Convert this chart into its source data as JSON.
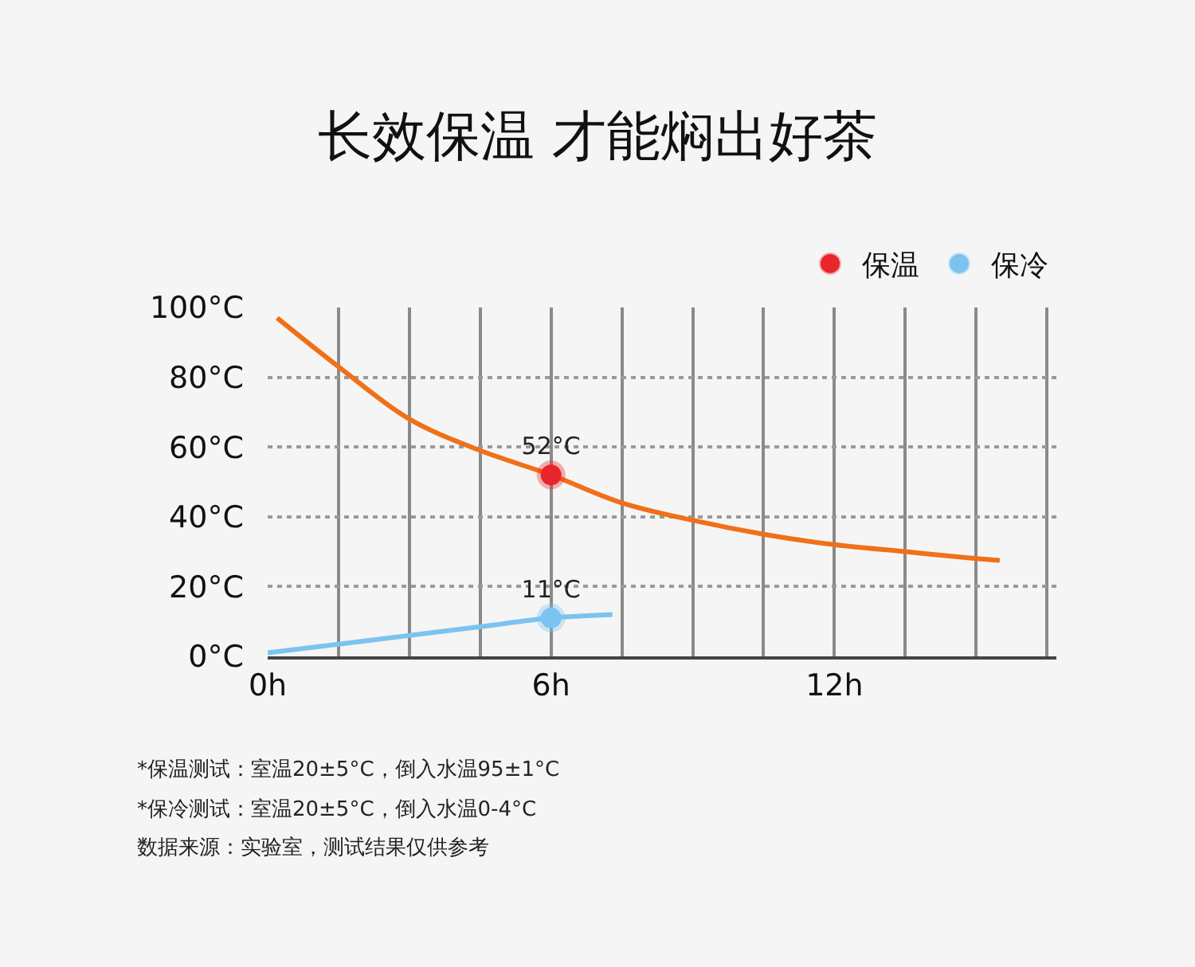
{
  "chart_data": {
    "type": "line",
    "title": "长效保温 才能焖出好茶",
    "xlim": [
      0,
      16.7
    ],
    "xticks": [
      {
        "value": 0,
        "label": "0h"
      },
      {
        "value": 1.5,
        "label": null
      },
      {
        "value": 3,
        "label": null
      },
      {
        "value": 4.5,
        "label": null
      },
      {
        "value": 6,
        "label": "6h"
      },
      {
        "value": 7.5,
        "label": null
      },
      {
        "value": 9,
        "label": null
      },
      {
        "value": 10.5,
        "label": null
      },
      {
        "value": 12,
        "label": "12h"
      },
      {
        "value": 13.5,
        "label": null
      },
      {
        "value": 15,
        "label": null
      },
      {
        "value": 16.5,
        "label": null
      }
    ],
    "ylim": [
      0,
      100
    ],
    "yticks": [
      {
        "value": 0,
        "label": "0°C"
      },
      {
        "value": 20,
        "label": "20°C"
      },
      {
        "value": 40,
        "label": "40°C"
      },
      {
        "value": 60,
        "label": "60°C"
      },
      {
        "value": 80,
        "label": "80°C"
      },
      {
        "value": 100,
        "label": "100°C"
      }
    ],
    "grid": true,
    "legend": "top right",
    "series": [
      {
        "color": "#f07019",
        "marker": "none",
        "line_style": "solid",
        "x": [
          0.2,
          1.5,
          3,
          4.5,
          6,
          7.5,
          9,
          10.5,
          12,
          13.5,
          15,
          15.5
        ],
        "values": [
          97,
          83,
          68,
          59,
          52,
          44,
          39,
          35,
          32,
          30,
          28,
          27.5
        ]
      },
      {
        "color": "#7cc3f0",
        "marker": "none",
        "line_style": "solid",
        "x": [
          0,
          1.5,
          3,
          4.5,
          6,
          7.3
        ],
        "values": [
          1,
          3.5,
          6,
          8.5,
          11,
          12
        ]
      },
      {
        "type": "scatter",
        "name": "保温",
        "color": "#e8262b",
        "marker": "circle",
        "x": [
          6
        ],
        "values": [
          52
        ],
        "value_labels": [
          "52°C"
        ]
      },
      {
        "type": "scatter",
        "name": "保冷",
        "color": "#7cc3f0",
        "marker": "circle",
        "x": [
          6
        ],
        "values": [
          11
        ],
        "value_labels": [
          "11°C"
        ]
      }
    ],
    "annotations": [
      "*保温测试：室温20±5°C，倒入水温95±1°C",
      "*保冷测试：室温20±5°C，倒入水温0-4°C",
      "数据来源：实验室，测试结果仅供参考"
    ]
  }
}
